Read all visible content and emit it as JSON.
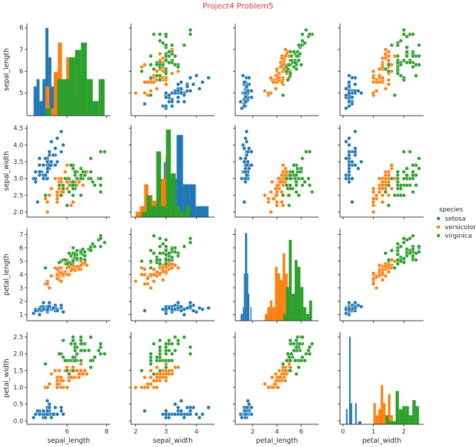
{
  "title": "Project4 Problem5",
  "chart_data": {
    "type": "scatter",
    "subtype": "pairplot",
    "title": "Project4 Problem5",
    "grid": false,
    "diagonal": "histogram",
    "variables": [
      "sepal_length",
      "sepal_width",
      "petal_length",
      "petal_width"
    ],
    "axes": {
      "sepal_length": {
        "range": [
          3.96,
          8.2
        ],
        "ticks": [
          5,
          6,
          7,
          8
        ],
        "x_ticks": [
          6,
          8
        ],
        "tick_labels": [
          "5",
          "6",
          "7",
          "8"
        ],
        "x_tick_labels": [
          "6",
          "8"
        ]
      },
      "sepal_width": {
        "range": [
          1.85,
          4.6
        ],
        "ticks": [
          2.0,
          2.5,
          3.0,
          3.5,
          4.0,
          4.5
        ],
        "x_ticks": [
          2,
          3,
          4
        ],
        "tick_labels": [
          "2.0",
          "2.5",
          "3.0",
          "3.5",
          "4.0",
          "4.5"
        ],
        "x_tick_labels": [
          "2",
          "3",
          "4"
        ]
      },
      "petal_length": {
        "range": [
          0.55,
          7.45
        ],
        "ticks": [
          1,
          2,
          3,
          4,
          5,
          6,
          7
        ],
        "x_ticks": [
          2,
          4,
          6
        ],
        "tick_labels": [
          "1",
          "2",
          "3",
          "4",
          "5",
          "6",
          "7"
        ],
        "x_tick_labels": [
          "2",
          "4",
          "6"
        ]
      },
      "petal_width": {
        "range": [
          -0.1,
          2.65
        ],
        "ticks": [
          0.0,
          0.5,
          1.0,
          1.5,
          2.0,
          2.5
        ],
        "x_ticks": [
          0,
          1,
          2
        ],
        "tick_labels": [
          "0.0",
          "0.5",
          "1.0",
          "1.5",
          "2.0",
          "2.5"
        ],
        "x_tick_labels": [
          "0",
          "1",
          "2"
        ]
      }
    },
    "legend": {
      "title": "species",
      "position": "right"
    },
    "series": [
      {
        "name": "setosa",
        "color": "#1f77b4",
        "rows": [
          [
            5.1,
            3.5,
            1.4,
            0.2
          ],
          [
            4.9,
            3.0,
            1.4,
            0.2
          ],
          [
            4.7,
            3.2,
            1.3,
            0.2
          ],
          [
            4.6,
            3.1,
            1.5,
            0.2
          ],
          [
            5.0,
            3.6,
            1.4,
            0.2
          ],
          [
            5.4,
            3.9,
            1.7,
            0.4
          ],
          [
            4.6,
            3.4,
            1.4,
            0.3
          ],
          [
            5.0,
            3.4,
            1.5,
            0.2
          ],
          [
            4.4,
            2.9,
            1.4,
            0.2
          ],
          [
            4.9,
            3.1,
            1.5,
            0.1
          ],
          [
            5.4,
            3.7,
            1.5,
            0.2
          ],
          [
            4.8,
            3.4,
            1.6,
            0.2
          ],
          [
            4.8,
            3.0,
            1.4,
            0.1
          ],
          [
            4.3,
            3.0,
            1.1,
            0.1
          ],
          [
            5.8,
            4.0,
            1.2,
            0.2
          ],
          [
            5.7,
            4.4,
            1.5,
            0.4
          ],
          [
            5.4,
            3.9,
            1.3,
            0.4
          ],
          [
            5.1,
            3.5,
            1.4,
            0.3
          ],
          [
            5.7,
            3.8,
            1.7,
            0.3
          ],
          [
            5.1,
            3.8,
            1.5,
            0.3
          ],
          [
            5.4,
            3.4,
            1.7,
            0.2
          ],
          [
            5.1,
            3.7,
            1.5,
            0.4
          ],
          [
            4.6,
            3.6,
            1.0,
            0.2
          ],
          [
            5.1,
            3.3,
            1.7,
            0.5
          ],
          [
            4.8,
            3.4,
            1.9,
            0.2
          ],
          [
            5.0,
            3.0,
            1.6,
            0.2
          ],
          [
            5.0,
            3.4,
            1.6,
            0.4
          ],
          [
            5.2,
            3.5,
            1.5,
            0.2
          ],
          [
            5.2,
            3.4,
            1.4,
            0.2
          ],
          [
            4.7,
            3.2,
            1.6,
            0.2
          ],
          [
            4.8,
            3.1,
            1.6,
            0.2
          ],
          [
            5.4,
            3.4,
            1.5,
            0.4
          ],
          [
            5.2,
            4.1,
            1.5,
            0.1
          ],
          [
            5.5,
            4.2,
            1.4,
            0.2
          ],
          [
            4.9,
            3.1,
            1.5,
            0.2
          ],
          [
            5.0,
            3.2,
            1.2,
            0.2
          ],
          [
            5.5,
            3.5,
            1.3,
            0.2
          ],
          [
            4.9,
            3.6,
            1.4,
            0.1
          ],
          [
            4.4,
            3.0,
            1.3,
            0.2
          ],
          [
            5.1,
            3.4,
            1.5,
            0.2
          ],
          [
            5.0,
            3.5,
            1.3,
            0.3
          ],
          [
            4.5,
            2.3,
            1.3,
            0.3
          ],
          [
            4.4,
            3.2,
            1.3,
            0.2
          ],
          [
            5.0,
            3.5,
            1.6,
            0.6
          ],
          [
            5.1,
            3.8,
            1.9,
            0.4
          ],
          [
            4.8,
            3.0,
            1.4,
            0.3
          ],
          [
            5.1,
            3.8,
            1.6,
            0.2
          ],
          [
            4.6,
            3.2,
            1.4,
            0.2
          ],
          [
            5.3,
            3.7,
            1.5,
            0.2
          ],
          [
            5.0,
            3.3,
            1.4,
            0.2
          ]
        ]
      },
      {
        "name": "versicolor",
        "color": "#ff7f0e",
        "rows": [
          [
            7.0,
            3.2,
            4.7,
            1.4
          ],
          [
            6.4,
            3.2,
            4.5,
            1.5
          ],
          [
            6.9,
            3.1,
            4.9,
            1.5
          ],
          [
            5.5,
            2.3,
            4.0,
            1.3
          ],
          [
            6.5,
            2.8,
            4.6,
            1.5
          ],
          [
            5.7,
            2.8,
            4.5,
            1.3
          ],
          [
            6.3,
            3.3,
            4.7,
            1.6
          ],
          [
            4.9,
            2.4,
            3.3,
            1.0
          ],
          [
            6.6,
            2.9,
            4.6,
            1.3
          ],
          [
            5.2,
            2.7,
            3.9,
            1.4
          ],
          [
            5.0,
            2.0,
            3.5,
            1.0
          ],
          [
            5.9,
            3.0,
            4.2,
            1.5
          ],
          [
            6.0,
            2.2,
            4.0,
            1.0
          ],
          [
            6.1,
            2.9,
            4.7,
            1.4
          ],
          [
            5.6,
            2.9,
            3.6,
            1.3
          ],
          [
            6.7,
            3.1,
            4.4,
            1.4
          ],
          [
            5.6,
            3.0,
            4.5,
            1.5
          ],
          [
            5.8,
            2.7,
            4.1,
            1.0
          ],
          [
            6.2,
            2.2,
            4.5,
            1.5
          ],
          [
            5.6,
            2.5,
            3.9,
            1.1
          ],
          [
            5.9,
            3.2,
            4.8,
            1.8
          ],
          [
            6.1,
            2.8,
            4.0,
            1.3
          ],
          [
            6.3,
            2.5,
            4.9,
            1.5
          ],
          [
            6.1,
            2.8,
            4.7,
            1.2
          ],
          [
            6.4,
            2.9,
            4.3,
            1.3
          ],
          [
            6.6,
            3.0,
            4.4,
            1.4
          ],
          [
            6.8,
            2.8,
            4.8,
            1.4
          ],
          [
            6.7,
            3.0,
            5.0,
            1.7
          ],
          [
            6.0,
            2.9,
            4.5,
            1.5
          ],
          [
            5.7,
            2.6,
            3.5,
            1.0
          ],
          [
            5.5,
            2.4,
            3.8,
            1.1
          ],
          [
            5.5,
            2.4,
            3.7,
            1.0
          ],
          [
            5.8,
            2.7,
            3.9,
            1.2
          ],
          [
            6.0,
            2.7,
            5.1,
            1.6
          ],
          [
            5.4,
            3.0,
            4.5,
            1.5
          ],
          [
            6.0,
            3.4,
            4.5,
            1.6
          ],
          [
            6.7,
            3.1,
            4.7,
            1.5
          ],
          [
            6.3,
            2.3,
            4.4,
            1.3
          ],
          [
            5.6,
            3.0,
            4.1,
            1.3
          ],
          [
            5.5,
            2.5,
            4.0,
            1.3
          ],
          [
            5.5,
            2.6,
            4.4,
            1.2
          ],
          [
            6.1,
            3.0,
            4.6,
            1.4
          ],
          [
            5.8,
            2.6,
            4.0,
            1.2
          ],
          [
            5.0,
            2.3,
            3.3,
            1.0
          ],
          [
            5.6,
            2.7,
            4.2,
            1.3
          ],
          [
            5.7,
            3.0,
            4.2,
            1.2
          ],
          [
            5.7,
            2.9,
            4.2,
            1.3
          ],
          [
            6.2,
            2.9,
            4.3,
            1.3
          ],
          [
            5.1,
            2.5,
            3.0,
            1.1
          ],
          [
            5.7,
            2.8,
            4.1,
            1.3
          ]
        ]
      },
      {
        "name": "virginica",
        "color": "#2ca02c",
        "rows": [
          [
            6.3,
            3.3,
            6.0,
            2.5
          ],
          [
            5.8,
            2.7,
            5.1,
            1.9
          ],
          [
            7.1,
            3.0,
            5.9,
            2.1
          ],
          [
            6.3,
            2.9,
            5.6,
            1.8
          ],
          [
            6.5,
            3.0,
            5.8,
            2.2
          ],
          [
            7.6,
            3.0,
            6.6,
            2.1
          ],
          [
            4.9,
            2.5,
            4.5,
            1.7
          ],
          [
            7.3,
            2.9,
            6.3,
            1.8
          ],
          [
            6.7,
            2.5,
            5.8,
            1.8
          ],
          [
            7.2,
            3.6,
            6.1,
            2.5
          ],
          [
            6.5,
            3.2,
            5.1,
            2.0
          ],
          [
            6.4,
            2.7,
            5.3,
            1.9
          ],
          [
            6.8,
            3.0,
            5.5,
            2.1
          ],
          [
            5.7,
            2.5,
            5.0,
            2.0
          ],
          [
            5.8,
            2.8,
            5.1,
            2.4
          ],
          [
            6.4,
            3.2,
            5.3,
            2.3
          ],
          [
            6.5,
            3.0,
            5.5,
            1.8
          ],
          [
            7.7,
            3.8,
            6.7,
            2.2
          ],
          [
            7.7,
            2.6,
            6.9,
            2.3
          ],
          [
            6.0,
            2.2,
            5.0,
            1.5
          ],
          [
            6.9,
            3.2,
            5.7,
            2.3
          ],
          [
            5.6,
            2.8,
            4.9,
            2.0
          ],
          [
            7.7,
            2.8,
            6.7,
            2.0
          ],
          [
            6.3,
            2.7,
            4.9,
            1.8
          ],
          [
            6.7,
            3.3,
            5.7,
            2.1
          ],
          [
            7.2,
            3.2,
            6.0,
            1.8
          ],
          [
            6.2,
            2.8,
            4.8,
            1.8
          ],
          [
            6.1,
            3.0,
            4.9,
            1.8
          ],
          [
            6.4,
            2.8,
            5.6,
            2.1
          ],
          [
            7.2,
            3.0,
            5.8,
            1.6
          ],
          [
            7.4,
            2.8,
            6.1,
            1.9
          ],
          [
            7.9,
            3.8,
            6.4,
            2.0
          ],
          [
            6.4,
            2.8,
            5.6,
            2.2
          ],
          [
            6.3,
            2.8,
            5.1,
            1.5
          ],
          [
            6.1,
            2.6,
            5.6,
            1.4
          ],
          [
            7.7,
            3.0,
            6.1,
            2.3
          ],
          [
            6.3,
            3.4,
            5.6,
            2.4
          ],
          [
            6.4,
            3.1,
            5.5,
            1.8
          ],
          [
            6.0,
            3.0,
            4.8,
            1.8
          ],
          [
            6.9,
            3.1,
            5.4,
            2.1
          ],
          [
            6.7,
            3.1,
            5.6,
            2.4
          ],
          [
            6.9,
            3.1,
            5.1,
            2.3
          ],
          [
            5.8,
            2.7,
            5.1,
            1.9
          ],
          [
            6.8,
            3.2,
            5.9,
            2.3
          ],
          [
            6.7,
            3.3,
            5.7,
            2.5
          ],
          [
            6.7,
            3.0,
            5.2,
            2.3
          ],
          [
            6.3,
            2.5,
            5.0,
            1.9
          ],
          [
            6.5,
            3.0,
            5.2,
            2.0
          ],
          [
            6.2,
            3.4,
            5.4,
            2.3
          ],
          [
            5.9,
            3.0,
            5.1,
            1.8
          ]
        ]
      }
    ]
  }
}
